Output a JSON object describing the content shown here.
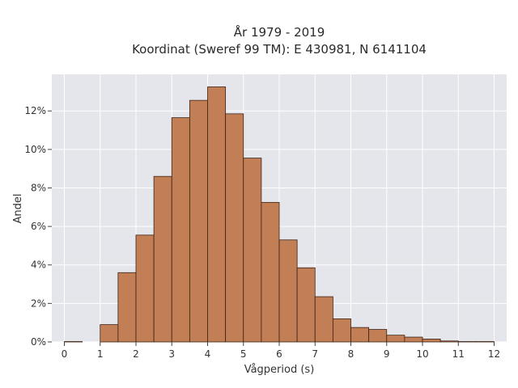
{
  "chart_data": {
    "type": "bar",
    "title_lines": [
      "År 1979 - 2019",
      "Koordinat (Sweref 99 TM): E 430981, N 6141104"
    ],
    "xlabel": "Vågperiod (s)",
    "ylabel": "Andel",
    "x_ticks": [
      0,
      1,
      2,
      3,
      4,
      5,
      6,
      7,
      8,
      9,
      10,
      11,
      12
    ],
    "x_tick_labels": [
      "0",
      "1",
      "2",
      "3",
      "4",
      "5",
      "6",
      "7",
      "8",
      "9",
      "10",
      "11",
      "12"
    ],
    "y_ticks": [
      0,
      2,
      4,
      6,
      8,
      10,
      12
    ],
    "y_tick_labels": [
      "0%",
      "2%",
      "4%",
      "6%",
      "8%",
      "10%",
      "12%"
    ],
    "xlim": [
      -0.35,
      12.35
    ],
    "ylim": [
      0,
      13.9
    ],
    "bin_width": 0.5,
    "bins": [
      {
        "x0": 0.0,
        "value": 0.02
      },
      {
        "x0": 1.0,
        "value": 0.9
      },
      {
        "x0": 1.5,
        "value": 3.6
      },
      {
        "x0": 2.0,
        "value": 5.55
      },
      {
        "x0": 2.5,
        "value": 8.6
      },
      {
        "x0": 3.0,
        "value": 11.65
      },
      {
        "x0": 3.5,
        "value": 12.55
      },
      {
        "x0": 4.0,
        "value": 13.25
      },
      {
        "x0": 4.5,
        "value": 11.85
      },
      {
        "x0": 5.0,
        "value": 9.55
      },
      {
        "x0": 5.5,
        "value": 7.25
      },
      {
        "x0": 6.0,
        "value": 5.3
      },
      {
        "x0": 6.5,
        "value": 3.85
      },
      {
        "x0": 7.0,
        "value": 2.35
      },
      {
        "x0": 7.5,
        "value": 1.2
      },
      {
        "x0": 8.0,
        "value": 0.75
      },
      {
        "x0": 8.5,
        "value": 0.65
      },
      {
        "x0": 9.0,
        "value": 0.35
      },
      {
        "x0": 9.5,
        "value": 0.25
      },
      {
        "x0": 10.0,
        "value": 0.15
      },
      {
        "x0": 10.5,
        "value": 0.05
      },
      {
        "x0": 11.0,
        "value": 0.02
      },
      {
        "x0": 11.5,
        "value": 0.02
      }
    ],
    "bar_color": "#c0784c",
    "bar_edge_color": "#3d2416",
    "plot_background": "#e5e5ec",
    "grid": true,
    "grid_color": "#ffffff"
  }
}
